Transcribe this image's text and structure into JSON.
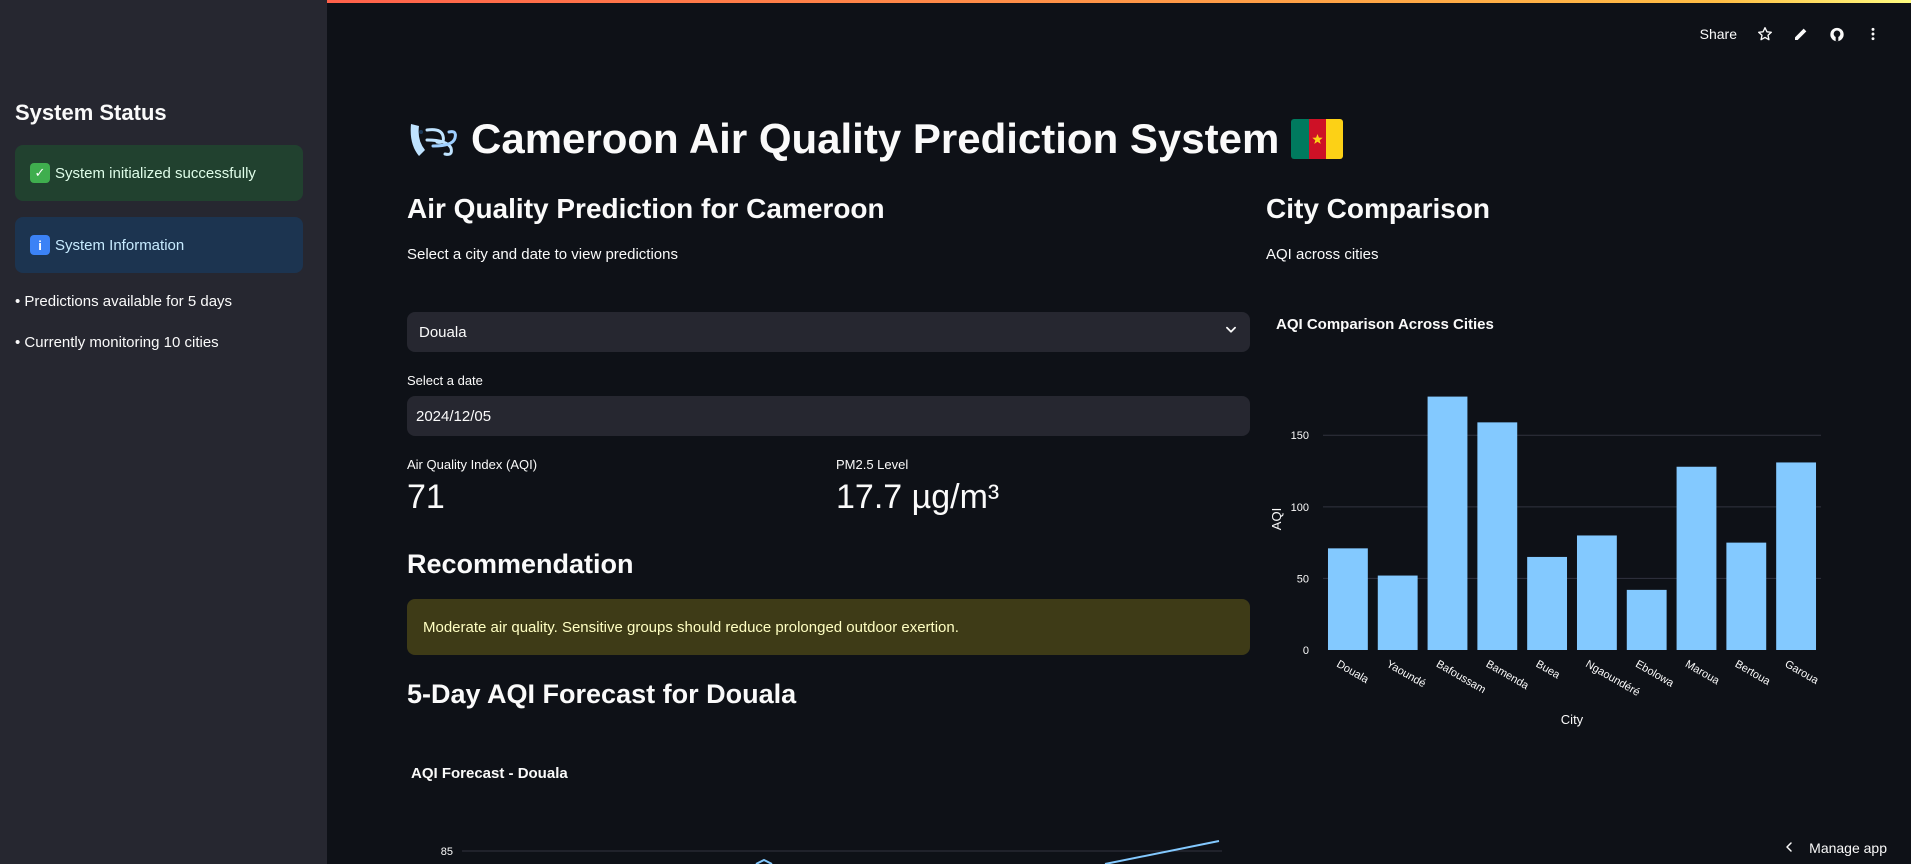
{
  "app": {
    "accent_gradient": [
      "#ff4b4b",
      "#ffbd45",
      "#fffd80"
    ],
    "background": "#0e1117",
    "sidebar_bg": "#262730"
  },
  "header": {
    "share_label": "Share",
    "icons": [
      "star-icon",
      "edit-icon",
      "github-icon",
      "more-vert-icon"
    ]
  },
  "sidebar": {
    "title": "System Status",
    "success_alert": "System initialized successfully",
    "info_alert": "System Information",
    "bullets": [
      "• Predictions available for 5 days",
      "• Currently monitoring 10 cities"
    ]
  },
  "main": {
    "title": "Cameroon Air Quality Prediction System",
    "left": {
      "heading": "Air Quality Prediction for Cameroon",
      "caption": "Select a city and date to view predictions",
      "city_select": {
        "value": "Douala"
      },
      "date_label": "Select a date",
      "date_value": "2024/12/05",
      "metrics": [
        {
          "label": "Air Quality Index (AQI)",
          "value": "71"
        },
        {
          "label": "PM2.5 Level",
          "value": "17.7 µg/m³"
        }
      ],
      "recommendation_heading": "Recommendation",
      "recommendation_text": "Moderate air quality. Sensitive groups should reduce prolonged outdoor exertion.",
      "forecast_heading": "5-Day AQI Forecast for Douala",
      "forecast_chart_title": "AQI Forecast - Douala"
    },
    "right": {
      "heading": "City Comparison",
      "caption": "AQI across cities"
    }
  },
  "footer": {
    "manage_label": "Manage app"
  },
  "chart_data": [
    {
      "type": "bar",
      "title": "AQI Comparison Across Cities",
      "xlabel": "City",
      "ylabel": "AQI",
      "categories": [
        "Douala",
        "Yaoundé",
        "Bafoussam",
        "Bamenda",
        "Buea",
        "Ngaoundéré",
        "Ebolowa",
        "Maroua",
        "Bertoua",
        "Garoua"
      ],
      "values": [
        71,
        52,
        177,
        159,
        65,
        80,
        42,
        128,
        75,
        131
      ],
      "yticks": [
        0,
        50,
        100,
        150
      ],
      "ylim": [
        0,
        183
      ],
      "bar_color": "#83c9ff",
      "grid": true
    },
    {
      "type": "line",
      "title": "AQI Forecast - Douala",
      "visible_yticks": [
        85
      ],
      "line_color": "#83c9ff"
    }
  ]
}
